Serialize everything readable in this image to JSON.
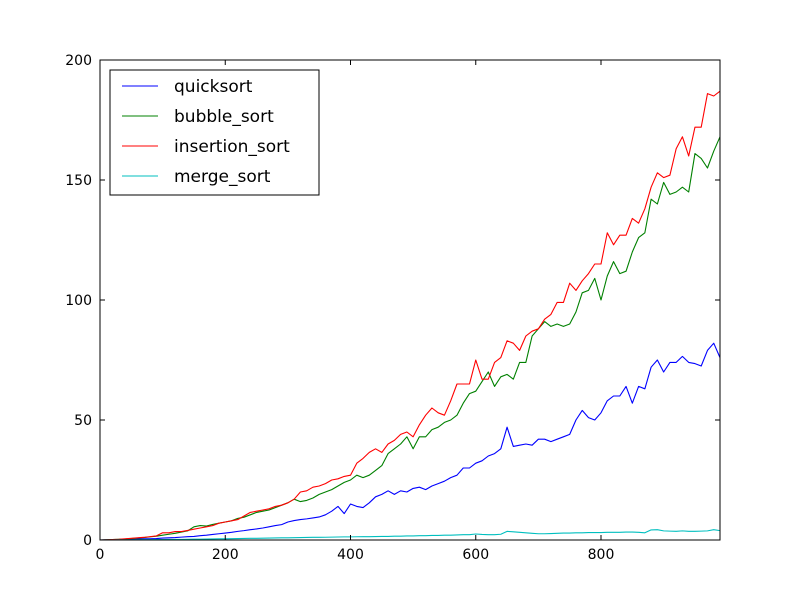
{
  "chart_data": {
    "type": "line",
    "title": "",
    "xlabel": "",
    "ylabel": "",
    "xlim": [
      0,
      990
    ],
    "ylim": [
      0,
      200
    ],
    "xticks": [
      0,
      200,
      400,
      600,
      800
    ],
    "xtick_labels": [
      "0",
      "200",
      "400",
      "600",
      "800"
    ],
    "yticks": [
      0,
      50,
      100,
      150,
      200
    ],
    "ytick_labels": [
      "0",
      "50",
      "100",
      "150",
      "200"
    ],
    "grid": false,
    "legend": {
      "position": "top-left"
    },
    "x": [
      0,
      10,
      20,
      30,
      40,
      50,
      60,
      70,
      80,
      90,
      100,
      110,
      120,
      130,
      140,
      150,
      160,
      170,
      180,
      190,
      200,
      210,
      220,
      230,
      240,
      250,
      260,
      270,
      280,
      290,
      300,
      310,
      320,
      330,
      340,
      350,
      360,
      370,
      380,
      390,
      400,
      410,
      420,
      430,
      440,
      450,
      460,
      470,
      480,
      490,
      500,
      510,
      520,
      530,
      540,
      550,
      560,
      570,
      580,
      590,
      600,
      610,
      620,
      630,
      640,
      650,
      660,
      670,
      680,
      690,
      700,
      710,
      720,
      730,
      740,
      750,
      760,
      770,
      780,
      790,
      800,
      810,
      820,
      830,
      840,
      850,
      860,
      870,
      880,
      890,
      900,
      910,
      920,
      930,
      940,
      950,
      960,
      970,
      980,
      990
    ],
    "series": [
      {
        "name": "quicksort",
        "color": "#0000ff",
        "values": [
          0,
          0.1,
          0.1,
          0.2,
          0.2,
          0.3,
          0.4,
          0.5,
          0.5,
          0.6,
          0.8,
          0.9,
          1.0,
          1.2,
          1.4,
          1.5,
          1.8,
          2.0,
          2.3,
          2.6,
          2.9,
          3.2,
          3.6,
          3.9,
          4.3,
          4.6,
          5.0,
          5.5,
          6.0,
          6.4,
          7.5,
          8.1,
          8.5,
          8.8,
          9.2,
          9.6,
          10.5,
          12.0,
          14.0,
          11.0,
          15.0,
          14.0,
          13.5,
          15.5,
          18.0,
          19.0,
          20.5,
          19.0,
          20.5,
          20.0,
          21.5,
          22.0,
          21.0,
          22.5,
          23.5,
          24.5,
          26.0,
          27.0,
          30.0,
          30.0,
          32.0,
          33.0,
          35.0,
          36.0,
          38.0,
          47.0,
          39.0,
          39.5,
          40.0,
          39.5,
          42.0,
          42.0,
          41.0,
          42.0,
          43.0,
          44.0,
          50.0,
          54.0,
          51.0,
          50.0,
          53.0,
          58.0,
          60.0,
          60.0,
          64.0,
          57.0,
          64.0,
          63.0,
          72.0,
          75.0,
          70.0,
          74.0,
          74.0,
          76.5,
          74.0,
          73.5,
          72.5,
          79.0,
          82.0,
          76.0
        ]
      },
      {
        "name": "bubble_sort",
        "color": "#008000",
        "values": [
          0,
          0.1,
          0.2,
          0.3,
          0.4,
          0.6,
          0.8,
          1.0,
          1.3,
          1.6,
          2.0,
          2.4,
          2.8,
          3.3,
          3.8,
          5.5,
          6.0,
          5.8,
          6.5,
          7.0,
          7.5,
          8.0,
          9.0,
          9.5,
          10.5,
          11.5,
          12.0,
          12.5,
          13.5,
          14.5,
          15.5,
          17.0,
          16.0,
          16.5,
          17.5,
          19.0,
          20.0,
          21.0,
          22.5,
          24.0,
          25.0,
          27.0,
          26.0,
          27.0,
          29.0,
          31.0,
          36.0,
          38.0,
          40.0,
          43.0,
          38.0,
          43.0,
          43.0,
          46.0,
          47.0,
          49.0,
          50.0,
          52.0,
          57.0,
          61.0,
          62.0,
          66.0,
          70.0,
          64.0,
          68.0,
          69.0,
          67.0,
          74.0,
          74.0,
          85.0,
          88.0,
          91.0,
          89.0,
          90.0,
          89.0,
          90.0,
          95.0,
          103.0,
          104.0,
          109.0,
          100.0,
          110.0,
          116.0,
          111.0,
          112.0,
          120.0,
          126.0,
          128.0,
          142.0,
          140.0,
          149.0,
          144.0,
          145.0,
          147.0,
          145.0,
          161.0,
          159.0,
          155.0,
          162.0,
          168.0
        ]
      },
      {
        "name": "insertion_sort",
        "color": "#ff0000",
        "values": [
          0,
          0.1,
          0.2,
          0.3,
          0.5,
          0.7,
          0.9,
          1.1,
          1.4,
          1.7,
          3.0,
          3.0,
          3.5,
          3.5,
          4.0,
          4.5,
          5.0,
          5.5,
          6.0,
          7.0,
          7.5,
          8.0,
          8.5,
          10.0,
          11.5,
          12.0,
          12.5,
          13.0,
          14.0,
          14.5,
          15.5,
          17.0,
          20.0,
          20.5,
          22.0,
          22.5,
          23.5,
          25.0,
          25.5,
          26.5,
          27.0,
          32.0,
          34.0,
          36.5,
          38.0,
          36.5,
          40.0,
          41.5,
          44.0,
          45.0,
          43.0,
          48.0,
          52.0,
          55.0,
          53.0,
          52.0,
          58.0,
          65.0,
          65.0,
          65.0,
          75.0,
          67.0,
          67.0,
          74.0,
          76.0,
          83.0,
          82.0,
          79.0,
          85.0,
          87.0,
          88.0,
          92.0,
          94.0,
          99.0,
          99.0,
          107.0,
          104.0,
          108.0,
          111.0,
          115.0,
          115.0,
          128.0,
          123.0,
          127.0,
          127.0,
          134.0,
          132.0,
          138.0,
          147.0,
          153.0,
          151.0,
          152.0,
          163.0,
          168.0,
          160.0,
          172.0,
          172.0,
          186.0,
          185.0,
          187.0
        ]
      },
      {
        "name": "merge_sort",
        "color": "#00bfbf",
        "values": [
          0,
          0.02,
          0.04,
          0.06,
          0.08,
          0.1,
          0.12,
          0.14,
          0.16,
          0.18,
          0.2,
          0.22,
          0.24,
          0.26,
          0.3,
          0.32,
          0.35,
          0.4,
          0.45,
          0.5,
          0.5,
          0.55,
          0.6,
          0.65,
          0.7,
          0.7,
          0.75,
          0.8,
          0.85,
          0.9,
          0.9,
          0.95,
          1.0,
          1.05,
          1.1,
          1.1,
          1.15,
          1.2,
          1.25,
          1.3,
          1.3,
          1.35,
          1.4,
          1.4,
          1.45,
          1.5,
          1.5,
          1.6,
          1.6,
          1.7,
          1.7,
          1.8,
          1.8,
          1.9,
          1.9,
          2.0,
          2.0,
          2.1,
          2.2,
          2.2,
          2.5,
          2.3,
          2.2,
          2.2,
          2.4,
          3.6,
          3.4,
          3.2,
          3.0,
          2.8,
          2.6,
          2.6,
          2.7,
          2.8,
          2.9,
          2.9,
          3.0,
          3.0,
          3.1,
          3.1,
          3.1,
          3.2,
          3.2,
          3.2,
          3.3,
          3.3,
          3.2,
          3.0,
          4.2,
          4.3,
          3.8,
          3.7,
          3.6,
          3.8,
          3.6,
          3.6,
          3.7,
          3.8,
          4.3,
          3.9
        ]
      }
    ]
  }
}
